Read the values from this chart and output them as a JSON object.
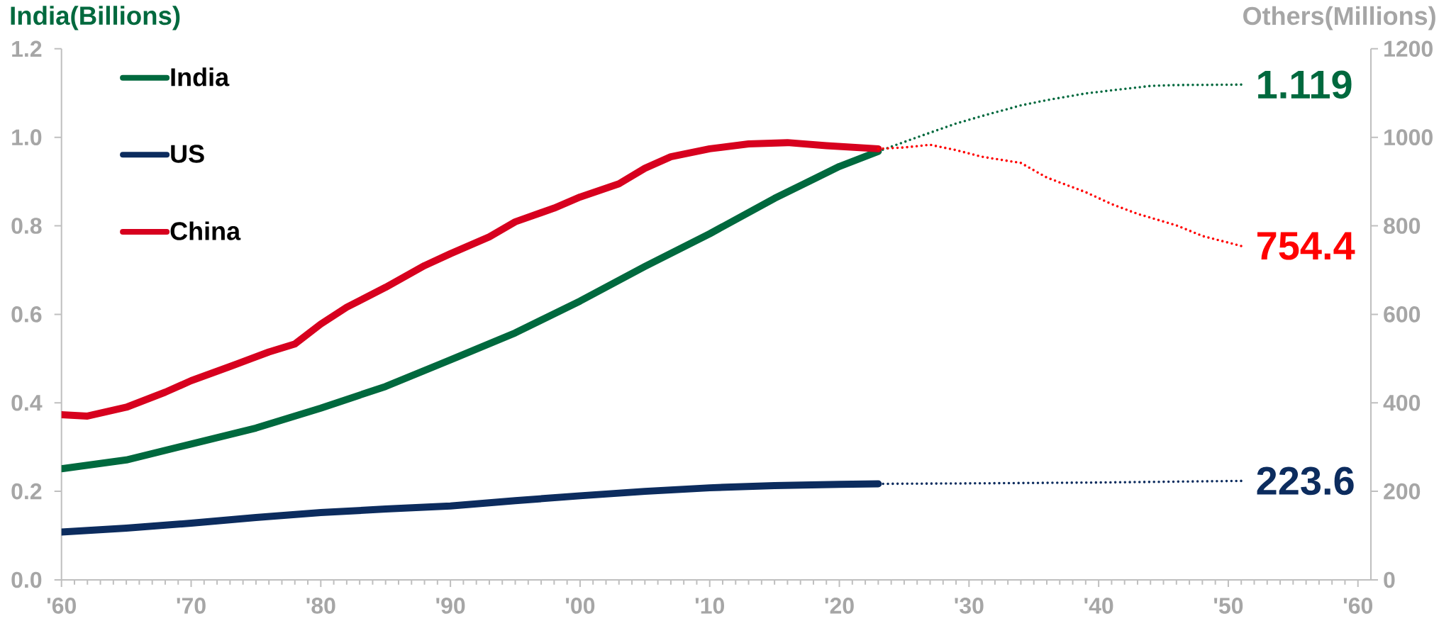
{
  "chart_data": {
    "type": "line",
    "xlim": [
      1960,
      2061
    ],
    "xticks": [
      {
        "value": 1960,
        "label": "'60"
      },
      {
        "value": 1970,
        "label": "'70"
      },
      {
        "value": 1980,
        "label": "'80"
      },
      {
        "value": 1990,
        "label": "'90"
      },
      {
        "value": 2000,
        "label": "'00"
      },
      {
        "value": 2010,
        "label": "'10"
      },
      {
        "value": 2020,
        "label": "'20"
      },
      {
        "value": 2030,
        "label": "'30"
      },
      {
        "value": 2040,
        "label": "'40"
      },
      {
        "value": 2050,
        "label": "'50"
      },
      {
        "value": 2060,
        "label": "'60"
      }
    ],
    "ylim": [
      0,
      1.2
    ],
    "yticks": [
      {
        "value": 0,
        "label": "0.0"
      },
      0.2,
      0.4,
      0.6,
      0.8,
      {
        "value": 1,
        "label": "1.0"
      },
      1.2
    ],
    "y2lim": [
      0,
      1200
    ],
    "y2ticks": [
      0,
      200,
      400,
      600,
      800,
      1000,
      1200
    ],
    "ylabel": "India(Billions)",
    "y2label": "Others(Millions)",
    "legend": "top left",
    "line_style": "solid",
    "series": [
      {
        "name": "India",
        "color": "#00693e",
        "axis": "y",
        "x": [
          1960,
          1965,
          1970,
          1975,
          1980,
          1985,
          1990,
          1995,
          2000,
          2005,
          2010,
          2015,
          2020,
          2023
        ],
        "values": [
          0.251,
          0.271,
          0.307,
          0.343,
          0.388,
          0.437,
          0.497,
          0.558,
          0.63,
          0.708,
          0.782,
          0.862,
          0.934,
          0.968
        ]
      },
      {
        "name": "US",
        "color": "#0c2c5e",
        "axis": "y2",
        "x": [
          1960,
          1965,
          1970,
          1975,
          1980,
          1985,
          1990,
          1995,
          2000,
          2005,
          2010,
          2015,
          2020,
          2023
        ],
        "values": [
          108,
          117,
          128,
          141,
          152,
          160,
          167,
          179,
          190,
          200,
          208,
          213,
          216,
          217
        ]
      },
      {
        "name": "China",
        "color": "#d7001e",
        "axis": "y2",
        "x": [
          1960,
          1962,
          1965,
          1968,
          1970,
          1973,
          1976,
          1978,
          1980,
          1982,
          1985,
          1988,
          1990,
          1993,
          1995,
          1998,
          2000,
          2003,
          2005,
          2007,
          2010,
          2013,
          2016,
          2019,
          2023
        ],
        "values": [
          373,
          370,
          390,
          424,
          450,
          482,
          515,
          533,
          578,
          616,
          661,
          710,
          737,
          775,
          809,
          840,
          865,
          895,
          930,
          956,
          974,
          985,
          988,
          981,
          974
        ]
      },
      {
        "color": "#00693e",
        "axis": "y",
        "line_style": "dotted",
        "x": [
          2023,
          2026,
          2029,
          2031,
          2034,
          2036,
          2039,
          2041,
          2044,
          2046,
          2051
        ],
        "values": [
          0.968,
          1.0,
          1.031,
          1.048,
          1.072,
          1.084,
          1.099,
          1.106,
          1.116,
          1.118,
          1.119
        ],
        "value_labels": [
          null,
          null,
          null,
          null,
          null,
          null,
          null,
          null,
          null,
          null,
          "1.119"
        ]
      },
      {
        "color": "#0c2c5e",
        "axis": "y2",
        "line_style": "dotted",
        "x": [
          2023,
          2030,
          2040,
          2051
        ],
        "values": [
          217,
          218,
          220,
          223.6
        ],
        "value_labels": [
          null,
          null,
          null,
          "223.6"
        ]
      },
      {
        "color": "#ff0000",
        "axis": "y2",
        "line_style": "dotted",
        "x": [
          2023,
          2025,
          2027,
          2029,
          2031,
          2034,
          2036,
          2039,
          2041,
          2043,
          2046,
          2048,
          2051
        ],
        "values": [
          974,
          977,
          983,
          971,
          956,
          942,
          909,
          876,
          849,
          827,
          801,
          777,
          754.4
        ],
        "value_labels": [
          null,
          null,
          null,
          null,
          null,
          null,
          null,
          null,
          null,
          null,
          null,
          null,
          "754.4"
        ]
      }
    ]
  }
}
